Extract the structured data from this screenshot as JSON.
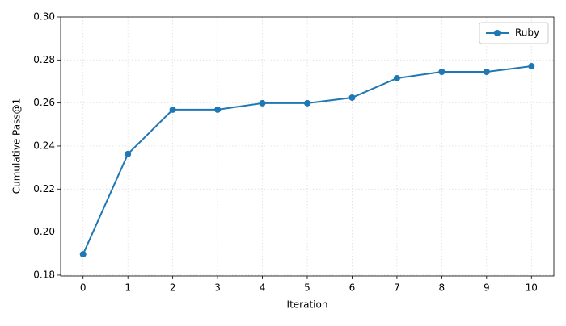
{
  "chart_data": {
    "type": "line",
    "xlabel": "Iteration",
    "ylabel": "Cumulative Pass@1",
    "x": [
      0,
      1,
      2,
      3,
      4,
      5,
      6,
      7,
      8,
      9,
      10
    ],
    "series": [
      {
        "name": "Ruby",
        "color": "#1f77b4",
        "values": [
          0.1897,
          0.2363,
          0.2569,
          0.2569,
          0.2599,
          0.2599,
          0.2625,
          0.2715,
          0.2745,
          0.2745,
          0.2771
        ]
      }
    ],
    "xlim": [
      -0.5,
      10.5
    ],
    "xticks": [
      0,
      1,
      2,
      3,
      4,
      5,
      6,
      7,
      8,
      9,
      10
    ],
    "ylim": [
      0.1796,
      0.3
    ],
    "yticks": [
      0.18,
      {
        "value": 0.2,
        "label": "0.20"
      },
      0.22,
      0.24,
      0.26,
      0.28,
      {
        "value": 0.3,
        "label": "0.30"
      }
    ],
    "grid": true,
    "legend": "upper right"
  }
}
